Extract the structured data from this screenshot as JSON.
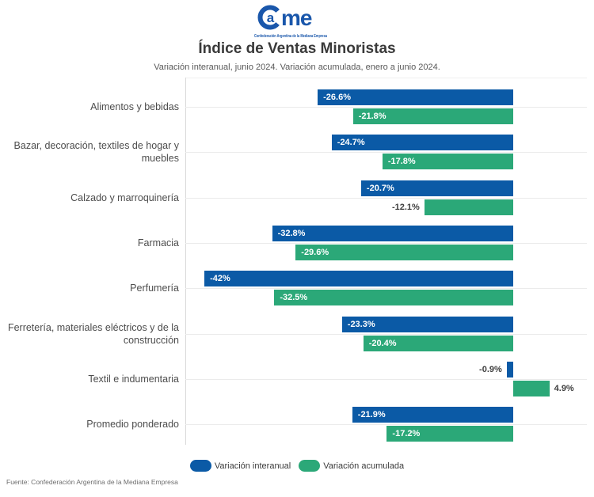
{
  "logo": {
    "letter_a": "a",
    "letters_me": "me",
    "tagline": "Confederación Argentina de la Mediana Empresa"
  },
  "header": {
    "title": "Índice de Ventas Minoristas",
    "subtitle": "Variación interanual, junio 2024. Variación acumulada, enero a junio 2024."
  },
  "footer": {
    "source": "Fuente: Confederación Argentina de la Mediana Empresa"
  },
  "colors": {
    "blue": "#0b5aa6",
    "green": "#2ba878",
    "logo_blue": "#1a57ab",
    "grid": "#ebebeb",
    "axis": "#d9d9d9"
  },
  "chart_data": {
    "type": "bar",
    "orientation": "horizontal",
    "title": "Índice de Ventas Minoristas",
    "subtitle": "Variación interanual, junio 2024. Variación acumulada, enero a junio 2024.",
    "value_suffix": "%",
    "xlim": [
      -44.6,
      10
    ],
    "grid": true,
    "legend_position": "bottom",
    "categories": [
      "Alimentos y bebidas",
      "Bazar, decoración, textiles de hogar y\nmuebles",
      "Calzado y marroquinería",
      "Farmacia",
      "Perfumería",
      "Ferretería, materiales eléctricos y de la\nconstrucción",
      "Textil e indumentaria",
      "Promedio ponderado"
    ],
    "series": [
      {
        "name": "Variación interanual",
        "color": "#0b5aa6",
        "values": [
          -26.6,
          -24.7,
          -20.7,
          -32.8,
          -42,
          -23.3,
          -0.9,
          -21.9
        ],
        "labels": [
          "-26.6%",
          "-24.7%",
          "-20.7%",
          "-32.8%",
          "-42%",
          "-23.3%",
          "-0.9%",
          "-21.9%"
        ]
      },
      {
        "name": "Variación acumulada",
        "color": "#2ba878",
        "values": [
          -21.8,
          -17.8,
          -12.1,
          -29.6,
          -32.5,
          -20.4,
          4.9,
          -17.2
        ],
        "labels": [
          "-21.8%",
          "-17.8%",
          "-12.1%",
          "-29.6%",
          "-32.5%",
          "-20.4%",
          "4.9%",
          "-17.2%"
        ]
      }
    ]
  }
}
